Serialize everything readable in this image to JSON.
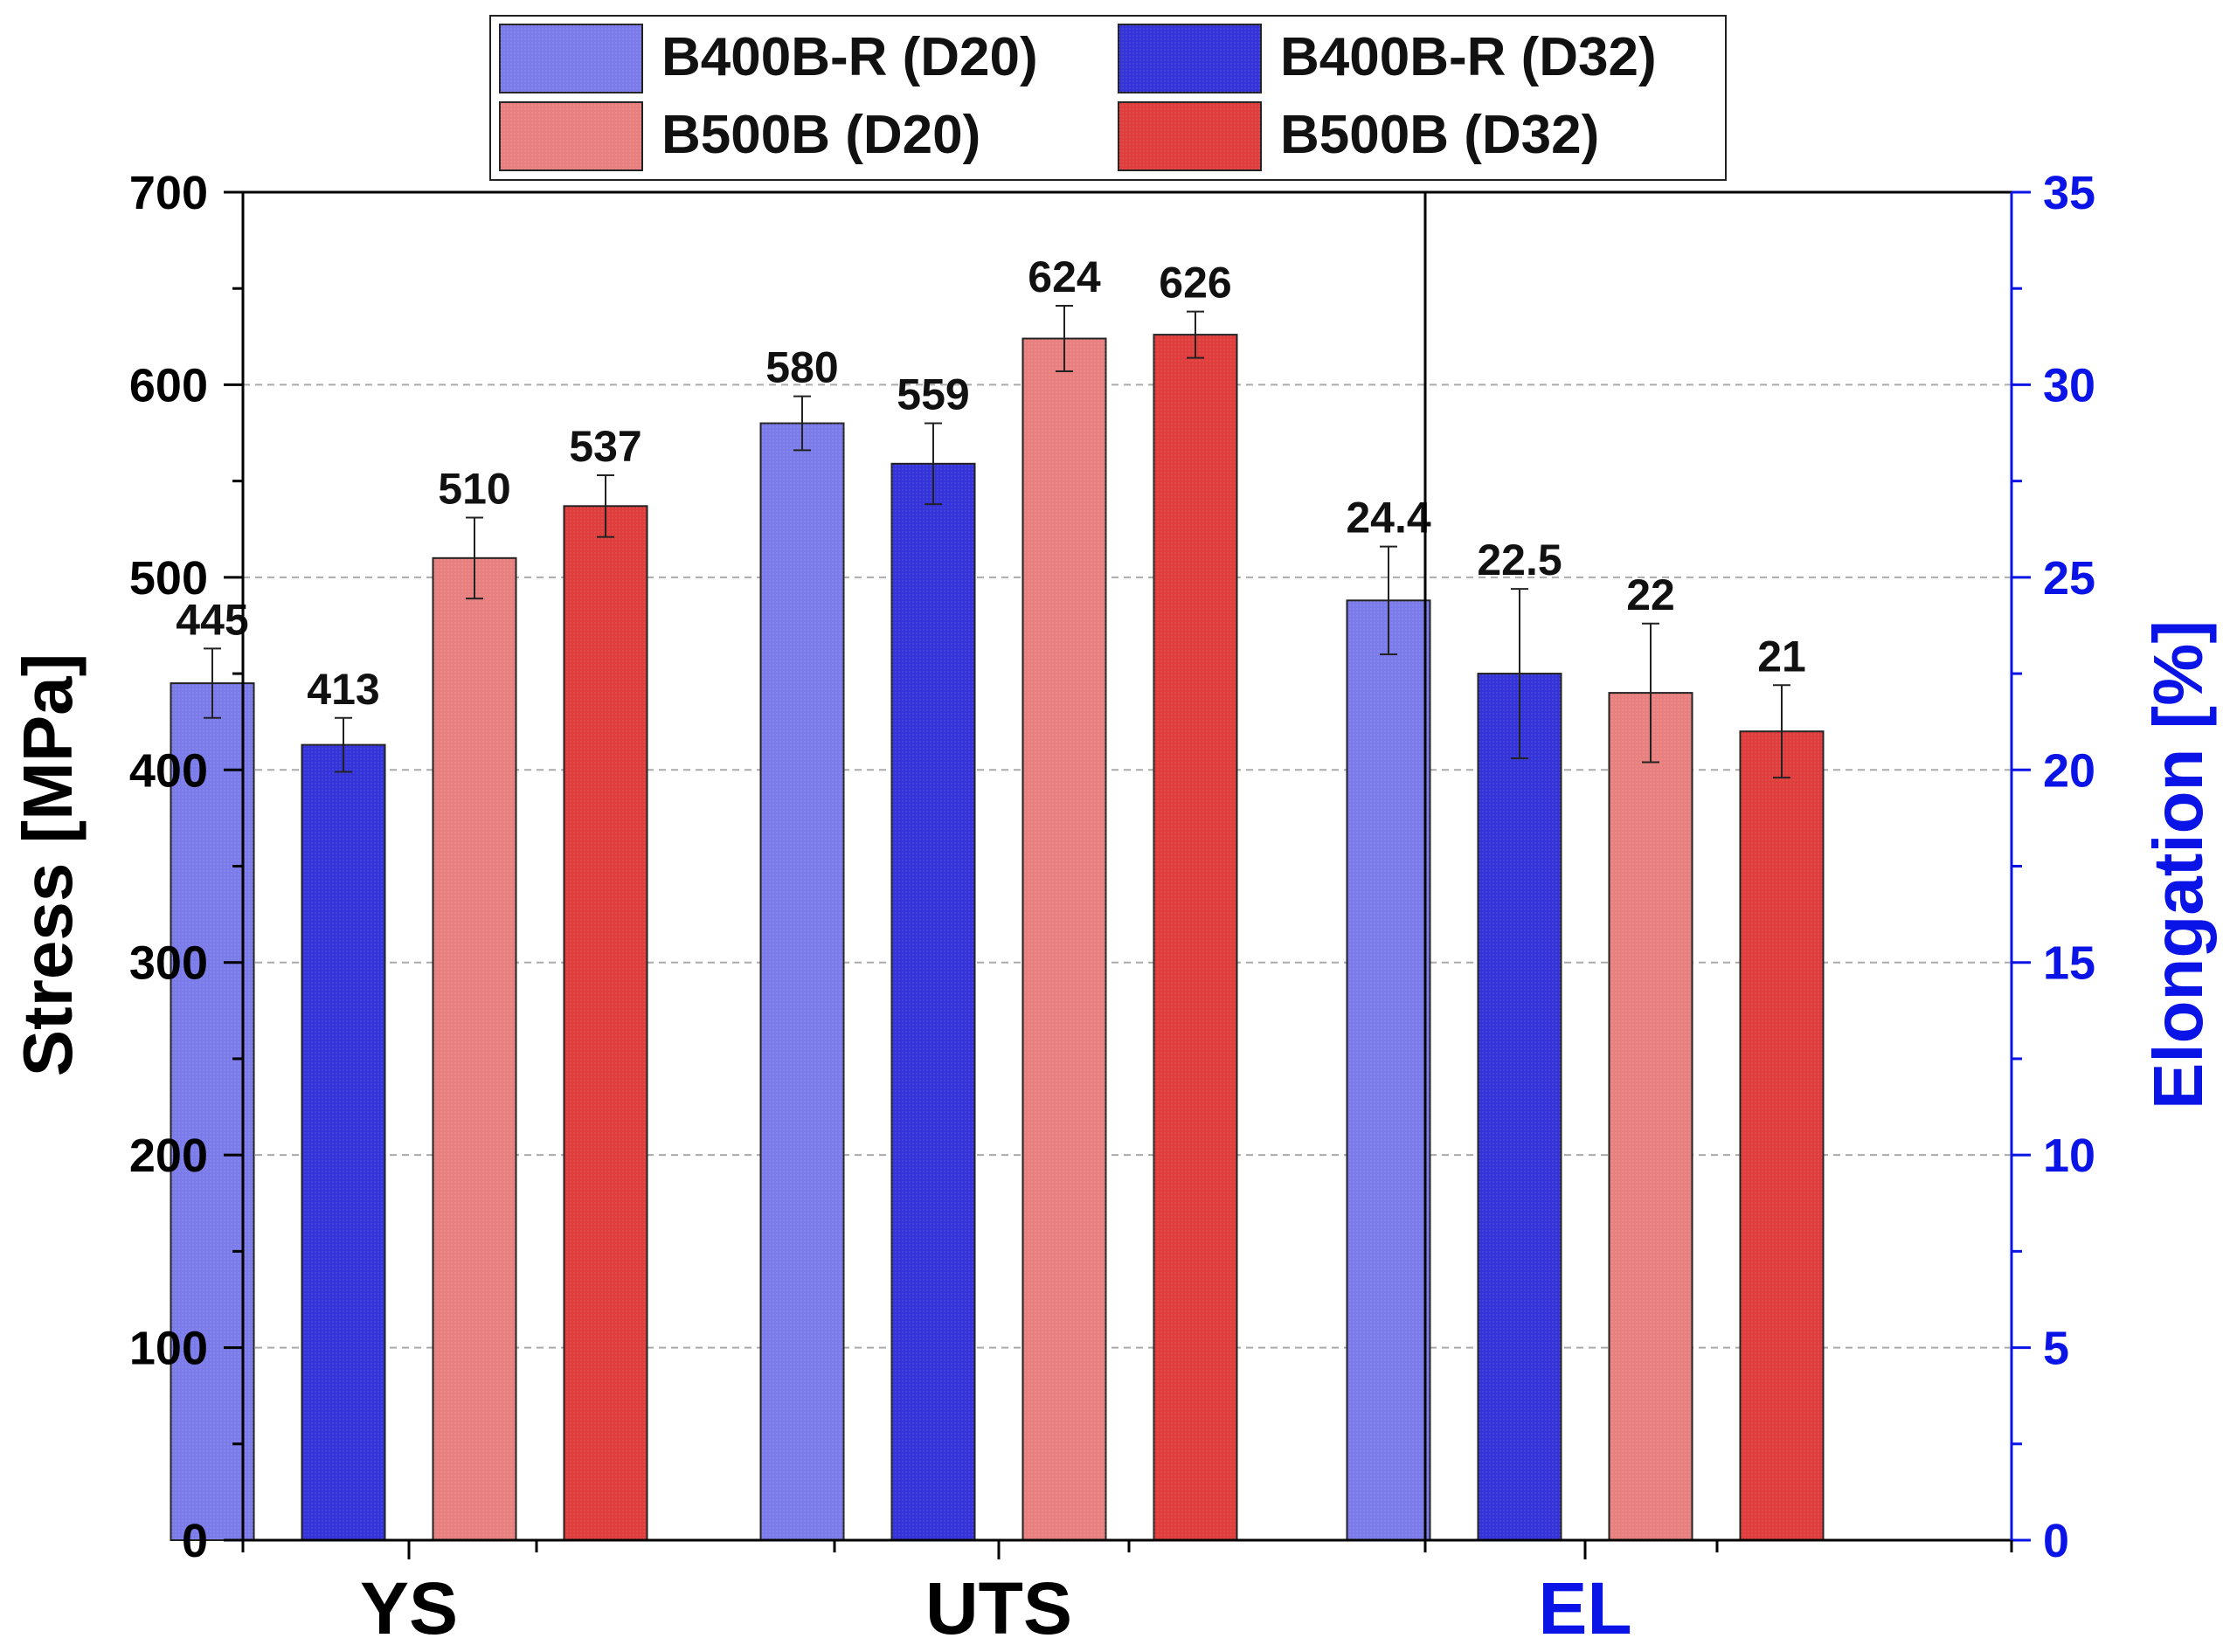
{
  "chart_data": {
    "type": "bar",
    "groups": [
      "YS",
      "UTS",
      "EL"
    ],
    "left_axis": {
      "label": "Stress [MPa]",
      "range": [
        0,
        700
      ],
      "major_step": 100,
      "minor_step": 50,
      "color": "#000000",
      "tick_labels": [
        "0",
        "100",
        "200",
        "300",
        "400",
        "500",
        "600",
        "700"
      ]
    },
    "right_axis": {
      "label": "Elongation [%]",
      "range": [
        0,
        35
      ],
      "major_step": 5,
      "minor_step": 2.5,
      "color": "#0a14e6",
      "tick_labels": [
        "0",
        "5",
        "10",
        "15",
        "20",
        "25",
        "30",
        "35"
      ]
    },
    "grid": "horizontal-dashed",
    "legend_position": "top-center",
    "series": [
      {
        "name": "B400B-R (D20)",
        "color": "#7b7bea",
        "values": [
          445,
          580,
          24.4
        ],
        "errors": [
          18,
          14,
          1.4
        ],
        "labels": [
          "445",
          "580",
          "24.4"
        ]
      },
      {
        "name": "B400B-R (D32)",
        "color": "#3434d9",
        "values": [
          413,
          559,
          22.5
        ],
        "errors": [
          14,
          21,
          2.2
        ],
        "labels": [
          "413",
          "559",
          "22.5"
        ]
      },
      {
        "name": "B500B (D20)",
        "color": "#e88080",
        "values": [
          510,
          624,
          22
        ],
        "errors": [
          21,
          17,
          1.8
        ],
        "labels": [
          "510",
          "624",
          "22"
        ]
      },
      {
        "name": "B500B (D32)",
        "color": "#e03d3d",
        "values": [
          537,
          626,
          21
        ],
        "errors": [
          16,
          12,
          1.2
        ],
        "labels": [
          "537",
          "626",
          "21"
        ]
      }
    ],
    "group_label_colors": [
      "#000000",
      "#000000",
      "#0a14e6"
    ],
    "group_axis": [
      "left",
      "left",
      "right"
    ]
  }
}
